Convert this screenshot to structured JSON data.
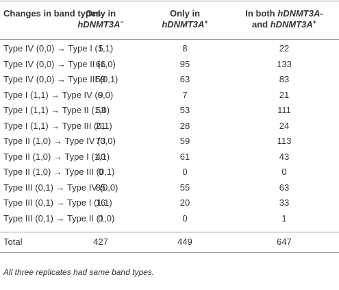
{
  "table": {
    "header": [
      "Changes in band types",
      [
        "Only in",
        "hDNMT3A",
        "−"
      ],
      [
        "Only in",
        "hDNMT3A",
        "+"
      ],
      [
        "In both",
        "hDNMT3A",
        "-",
        "and",
        "hDNMT3A",
        "+"
      ]
    ],
    "rows": [
      [
        "Type IV (0,0) → Type I (1,1)",
        "5",
        "8",
        "22"
      ],
      [
        "Type IV (0,0) → Type II (1,0)",
        "66",
        "95",
        "133"
      ],
      [
        "Type IV (0,0) → Type III (0,1)",
        "59",
        "63",
        "83"
      ],
      [
        "Type I (1,1) → Type IV (0,0)",
        "9",
        "7",
        "21"
      ],
      [
        "Type I (1,1) → Type II (1,0)",
        "53",
        "53",
        "111"
      ],
      [
        "Type I (1,1) → Type III (0,1)",
        "21",
        "28",
        "24"
      ],
      [
        "Type II (1,0) → Type IV (0,0)",
        "73",
        "59",
        "113"
      ],
      [
        "Type II (1,0) → Type I (1,1)",
        "40",
        "61",
        "43"
      ],
      [
        "Type II (1,0) → Type III (0,1)",
        "0",
        "0",
        "0"
      ],
      [
        "Type III (0,1) → Type IV (0,0)",
        "85",
        "55",
        "63"
      ],
      [
        "Type III (0,1) → Type I (1,1)",
        "16",
        "20",
        "33"
      ],
      [
        "Type III (0,1) → Type II (1,0)",
        "0",
        "0",
        "1"
      ]
    ],
    "total": [
      "Total",
      "427",
      "449",
      "647"
    ],
    "footnote": "All three replicates had same band types."
  }
}
